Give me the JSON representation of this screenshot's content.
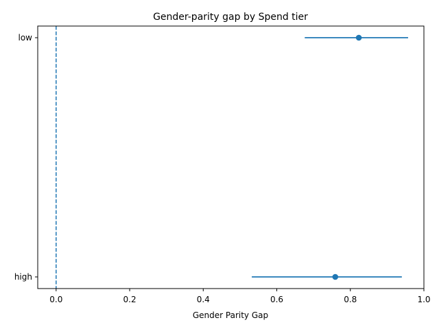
{
  "chart_data": {
    "type": "errorbar",
    "title": "Gender-parity gap by Spend tier",
    "xlabel": "Gender Parity Gap",
    "ylabel": "",
    "xlim": [
      -0.05,
      1.0
    ],
    "x_ticks": [
      0.0,
      0.2,
      0.4,
      0.6,
      0.8,
      1.0
    ],
    "x_tick_labels": [
      "0.0",
      "0.2",
      "0.4",
      "0.6",
      "0.8",
      "1.0"
    ],
    "categories": [
      "low",
      "high"
    ],
    "points": [
      {
        "category": "low",
        "value": 0.823,
        "lower": 0.676,
        "upper": 0.957
      },
      {
        "category": "high",
        "value": 0.759,
        "lower": 0.532,
        "upper": 0.94
      }
    ],
    "reference_line": {
      "x": 0.0,
      "style": "dashed"
    },
    "grid": false,
    "legend": "none",
    "colors": {
      "series": "#1f77b4",
      "axis": "#000000"
    }
  }
}
